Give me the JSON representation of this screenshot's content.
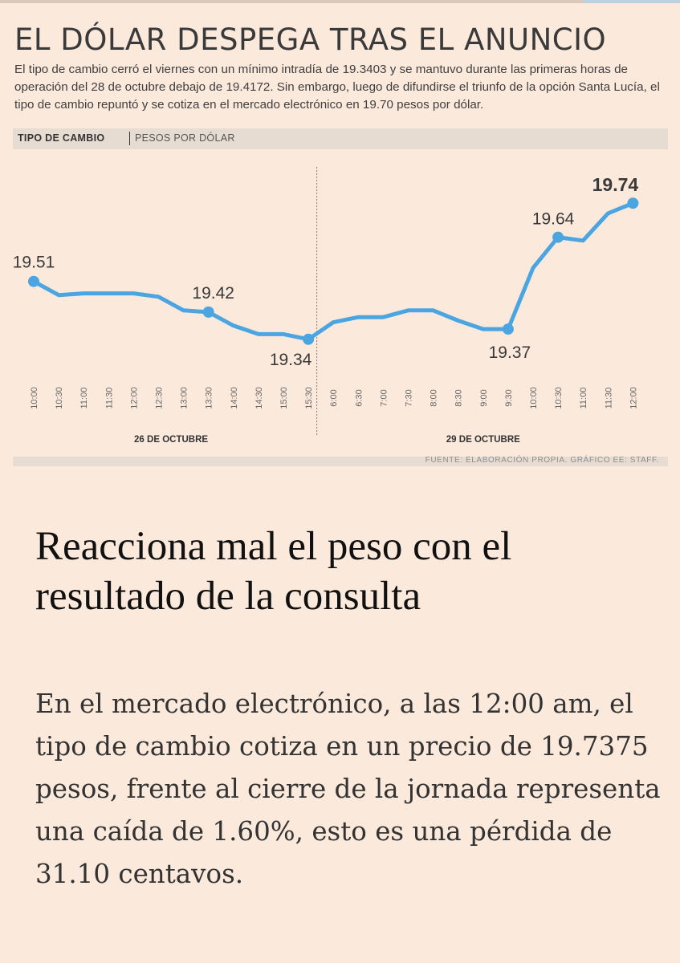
{
  "infographic": {
    "headline": "EL DÓLAR DESPEGA TRAS EL ANUNCIO",
    "deck": "El tipo de cambio cerró el viernes con un mínimo intradía de 19.3403 y se mantuvo durante las primeras horas de operación del 28 de octubre debajo de 19.4172. Sin embargo, luego de difundirse el triunfo de la opción Santa Lucía, el tipo de cambio repuntó y se cotiza en el mercado electrónico en 19.70 pesos por dólar.",
    "band_title": "TIPO DE CAMBIO",
    "band_unit": "PESOS POR DÓLAR",
    "source": "FUENTE: ELABORACIÓN PROPIA. GRÁFICO EE: STAFF."
  },
  "chart_data": {
    "type": "line",
    "categories": [
      "10:00",
      "10:30",
      "11:00",
      "11:30",
      "12:00",
      "12:30",
      "13:00",
      "13:30",
      "14:00",
      "14:30",
      "15:00",
      "15:30",
      "6:00",
      "6:30",
      "7:00",
      "7:30",
      "8:00",
      "8:30",
      "9:00",
      "9:30",
      "10:00",
      "10:30",
      "11:00",
      "11:30",
      "12:00"
    ],
    "groups": [
      {
        "label": "26 DE OCTUBRE",
        "start": 0,
        "end": 11
      },
      {
        "label": "29 DE OCTUBRE",
        "start": 12,
        "end": 24
      }
    ],
    "divider_after_index": 11,
    "series": [
      {
        "values": [
          19.51,
          19.47,
          19.475,
          19.475,
          19.475,
          19.465,
          19.425,
          19.42,
          19.38,
          19.355,
          19.355,
          19.34,
          19.39,
          19.405,
          19.405,
          19.425,
          19.425,
          19.395,
          19.37,
          19.37,
          19.55,
          19.64,
          19.63,
          19.71,
          19.74
        ],
        "color": "#4aa5e0"
      }
    ],
    "annotations": [
      {
        "index": 0,
        "label": "19.51",
        "bold": false
      },
      {
        "index": 7,
        "label": "19.42",
        "bold": false
      },
      {
        "index": 11,
        "label": "19.34",
        "bold": false
      },
      {
        "index": 19,
        "label": "19.37",
        "bold": false
      },
      {
        "index": 21,
        "label": "19.64",
        "bold": false
      },
      {
        "index": 24,
        "label": "19.74",
        "bold": true
      }
    ],
    "ylim": [
      19.29,
      19.79
    ],
    "grid": false,
    "xlabel": "",
    "ylabel": ""
  },
  "article": {
    "title": "Reacciona mal el peso con el resultado de la consulta",
    "body": "En el mercado electrónico, a las 12:00 am, el tipo de cambio cotiza en un precio de 19.7375 pesos, frente al cierre de la jornada representa una caída de 1.60%, esto es una pérdida de 31.10 centavos."
  }
}
